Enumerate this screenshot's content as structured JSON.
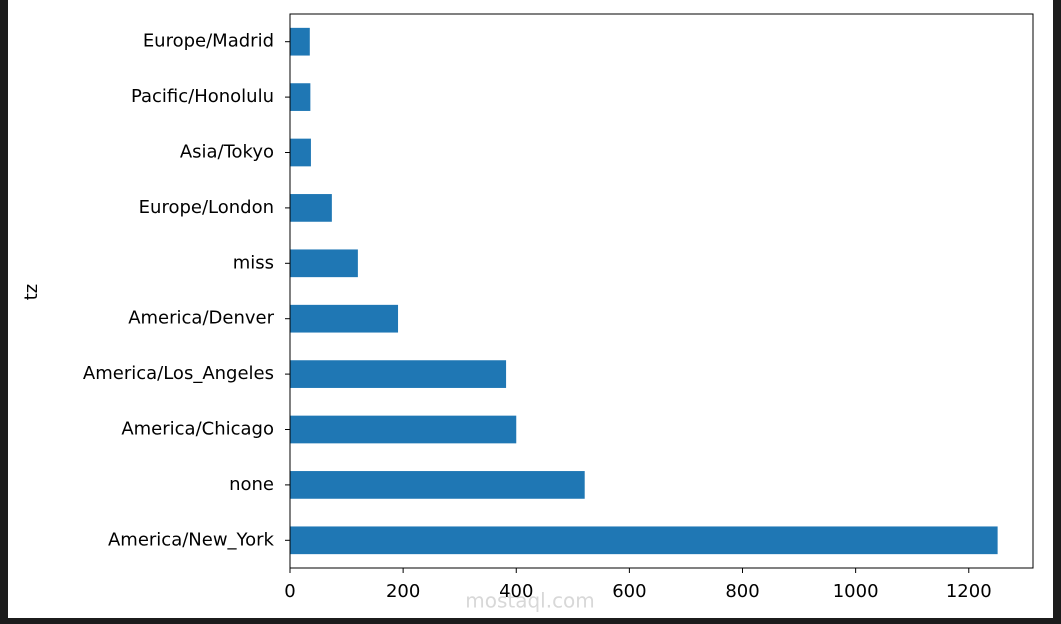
{
  "chart_data": {
    "type": "barh",
    "ylabel": "tz",
    "categories": [
      "America/New_York",
      "none",
      "America/Chicago",
      "America/Los_Angeles",
      "America/Denver",
      "miss",
      "Europe/London",
      "Asia/Tokyo",
      "Pacific/Honolulu",
      "Europe/Madrid"
    ],
    "values": [
      1251,
      521,
      400,
      382,
      191,
      120,
      74,
      37,
      36,
      35
    ],
    "color": "#1f77b4",
    "xlim": [
      0,
      1313.55
    ],
    "xticks": [
      0,
      200,
      400,
      600,
      800,
      1000,
      1200
    ]
  },
  "watermark": "mostaql.com"
}
